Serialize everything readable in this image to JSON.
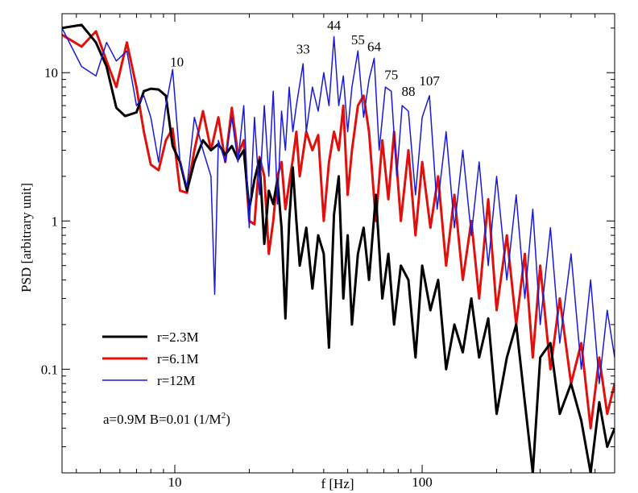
{
  "chart_data": {
    "type": "line",
    "title": "",
    "xlabel": "f [Hz]",
    "ylabel": "PSD [arbitrary unit]",
    "xscale": "log",
    "yscale": "log",
    "xlim": [
      3.5,
      600
    ],
    "ylim": [
      0.02,
      25
    ],
    "grid": false,
    "legend_position": "bottom-left",
    "x_ticks": [
      {
        "value": 10,
        "label": "10"
      },
      {
        "value": 100,
        "label": "100"
      }
    ],
    "y_ticks": [
      {
        "value": 0.1,
        "label": "0.1"
      },
      {
        "value": 1,
        "label": "1"
      },
      {
        "value": 10,
        "label": "10"
      }
    ],
    "annotation_parameters": {
      "text": "a=0.9M   B=0.01 (1/M",
      "superscript": "2",
      "suffix": ")"
    },
    "peak_labels": [
      {
        "label": "10",
        "x": 10.2,
        "y": 11.0
      },
      {
        "label": "33",
        "x": 33,
        "y": 13.5
      },
      {
        "label": "44",
        "x": 44,
        "y": 19.5
      },
      {
        "label": "55",
        "x": 55,
        "y": 15.5
      },
      {
        "label": "64",
        "x": 64,
        "y": 14.0
      },
      {
        "label": "75",
        "x": 75,
        "y": 9.0
      },
      {
        "label": "88",
        "x": 88,
        "y": 7.0
      },
      {
        "label": "107",
        "x": 107,
        "y": 8.2
      }
    ],
    "series": [
      {
        "name": "r=2.3M",
        "color": "#000000",
        "line_width": 3,
        "points": [
          [
            3.5,
            20
          ],
          [
            4.2,
            21
          ],
          [
            4.8,
            16
          ],
          [
            5.3,
            11
          ],
          [
            5.8,
            5.8
          ],
          [
            6.3,
            5.1
          ],
          [
            7.0,
            5.4
          ],
          [
            7.5,
            7.5
          ],
          [
            8.0,
            7.8
          ],
          [
            8.6,
            7.7
          ],
          [
            9.2,
            7.0
          ],
          [
            9.8,
            3.2
          ],
          [
            10.5,
            2.5
          ],
          [
            11.2,
            1.6
          ],
          [
            12.0,
            2.5
          ],
          [
            13.0,
            3.5
          ],
          [
            14.0,
            3.0
          ],
          [
            15.0,
            3.3
          ],
          [
            16.0,
            2.8
          ],
          [
            17.0,
            3.2
          ],
          [
            18.0,
            2.6
          ],
          [
            19.0,
            3.0
          ],
          [
            20.0,
            1.2
          ],
          [
            21.0,
            1.9
          ],
          [
            22.0,
            2.6
          ],
          [
            23.0,
            0.7
          ],
          [
            24.0,
            1.6
          ],
          [
            25.0,
            1.3
          ],
          [
            26.0,
            1.9
          ],
          [
            27.0,
            0.9
          ],
          [
            28.0,
            0.22
          ],
          [
            29.0,
            1.0
          ],
          [
            30.0,
            2.3
          ],
          [
            31.0,
            1.0
          ],
          [
            32.0,
            0.5
          ],
          [
            34.0,
            0.9
          ],
          [
            36.0,
            0.35
          ],
          [
            38.0,
            0.8
          ],
          [
            40.0,
            0.6
          ],
          [
            42.0,
            0.14
          ],
          [
            44.0,
            1.1
          ],
          [
            46.0,
            2.0
          ],
          [
            48.0,
            0.3
          ],
          [
            50.0,
            0.8
          ],
          [
            52.0,
            0.2
          ],
          [
            55.0,
            0.6
          ],
          [
            58.0,
            0.9
          ],
          [
            61.0,
            0.4
          ],
          [
            65.0,
            1.5
          ],
          [
            69.0,
            0.3
          ],
          [
            73.0,
            0.6
          ],
          [
            77.0,
            0.2
          ],
          [
            82.0,
            0.5
          ],
          [
            88.0,
            0.4
          ],
          [
            94.0,
            0.12
          ],
          [
            100.0,
            0.5
          ],
          [
            108.0,
            0.25
          ],
          [
            116.0,
            0.4
          ],
          [
            125.0,
            0.1
          ],
          [
            135.0,
            0.2
          ],
          [
            146.0,
            0.13
          ],
          [
            158.0,
            0.3
          ],
          [
            170.0,
            0.12
          ],
          [
            185.0,
            0.22
          ],
          [
            200.0,
            0.05
          ],
          [
            220.0,
            0.12
          ],
          [
            240.0,
            0.2
          ],
          [
            260.0,
            0.06
          ],
          [
            280.0,
            0.02
          ],
          [
            300.0,
            0.12
          ],
          [
            330.0,
            0.15
          ],
          [
            360.0,
            0.05
          ],
          [
            400.0,
            0.08
          ],
          [
            440.0,
            0.045
          ],
          [
            480.0,
            0.02
          ],
          [
            520.0,
            0.06
          ],
          [
            560.0,
            0.03
          ],
          [
            600.0,
            0.04
          ]
        ]
      },
      {
        "name": "r=6.1M",
        "color": "#e0100c",
        "line_width": 3,
        "points": [
          [
            3.5,
            18
          ],
          [
            4.2,
            15
          ],
          [
            4.8,
            19
          ],
          [
            5.3,
            12
          ],
          [
            5.8,
            8
          ],
          [
            6.4,
            16
          ],
          [
            7.0,
            8
          ],
          [
            7.5,
            4
          ],
          [
            8.0,
            2.4
          ],
          [
            8.6,
            2.2
          ],
          [
            9.2,
            3.5
          ],
          [
            9.8,
            4.2
          ],
          [
            10.5,
            1.6
          ],
          [
            11.2,
            1.55
          ],
          [
            12.0,
            3.0
          ],
          [
            13.0,
            5.5
          ],
          [
            14.0,
            3.0
          ],
          [
            15.0,
            5.0
          ],
          [
            16.0,
            2.5
          ],
          [
            17.0,
            5.8
          ],
          [
            18.0,
            2.8
          ],
          [
            19.0,
            3.5
          ],
          [
            20.0,
            1.0
          ],
          [
            21.0,
            0.95
          ],
          [
            22.0,
            2.7
          ],
          [
            23.0,
            2.0
          ],
          [
            24.0,
            0.6
          ],
          [
            25.0,
            1.0
          ],
          [
            26.0,
            2.0
          ],
          [
            27.0,
            2.5
          ],
          [
            28.0,
            1.2
          ],
          [
            29.0,
            1.8
          ],
          [
            30.0,
            2.6
          ],
          [
            31.0,
            4.0
          ],
          [
            32.0,
            2.0
          ],
          [
            34.0,
            4.0
          ],
          [
            36.0,
            3.0
          ],
          [
            38.0,
            3.8
          ],
          [
            40.0,
            1.0
          ],
          [
            42.0,
            2.5
          ],
          [
            44.0,
            4.0
          ],
          [
            46.0,
            3.0
          ],
          [
            48.0,
            6.0
          ],
          [
            50.0,
            1.5
          ],
          [
            52.0,
            3.0
          ],
          [
            55.0,
            6.0
          ],
          [
            58.0,
            7.0
          ],
          [
            61.0,
            4.0
          ],
          [
            65.0,
            1.0
          ],
          [
            69.0,
            3.5
          ],
          [
            73.0,
            1.4
          ],
          [
            77.0,
            4.0
          ],
          [
            82.0,
            1.0
          ],
          [
            88.0,
            3.0
          ],
          [
            94.0,
            0.8
          ],
          [
            100.0,
            2.5
          ],
          [
            108.0,
            0.9
          ],
          [
            116.0,
            2.0
          ],
          [
            125.0,
            0.5
          ],
          [
            135.0,
            1.5
          ],
          [
            146.0,
            0.4
          ],
          [
            158.0,
            1.0
          ],
          [
            170.0,
            0.3
          ],
          [
            185.0,
            1.4
          ],
          [
            200.0,
            0.25
          ],
          [
            220.0,
            0.8
          ],
          [
            240.0,
            0.2
          ],
          [
            260.0,
            0.6
          ],
          [
            280.0,
            0.12
          ],
          [
            300.0,
            0.5
          ],
          [
            330.0,
            0.1
          ],
          [
            360.0,
            0.3
          ],
          [
            400.0,
            0.08
          ],
          [
            440.0,
            0.15
          ],
          [
            480.0,
            0.04
          ],
          [
            520.0,
            0.12
          ],
          [
            560.0,
            0.05
          ],
          [
            600.0,
            0.08
          ]
        ]
      },
      {
        "name": "r=12M",
        "color": "#1a1ad6",
        "line_width": 1.5,
        "points": [
          [
            3.5,
            20
          ],
          [
            4.2,
            11
          ],
          [
            4.8,
            9.5
          ],
          [
            5.3,
            16
          ],
          [
            5.8,
            12
          ],
          [
            6.4,
            14
          ],
          [
            7.0,
            6
          ],
          [
            7.5,
            7.0
          ],
          [
            8.0,
            5.0
          ],
          [
            8.6,
            2.5
          ],
          [
            9.2,
            6.0
          ],
          [
            9.8,
            10.5
          ],
          [
            10.5,
            2.5
          ],
          [
            11.2,
            1.7
          ],
          [
            12.0,
            5.0
          ],
          [
            13.0,
            3.0
          ],
          [
            14.0,
            2.0
          ],
          [
            14.5,
            0.32
          ],
          [
            15.0,
            3.5
          ],
          [
            16.0,
            2.5
          ],
          [
            17.0,
            5.0
          ],
          [
            18.0,
            2.5
          ],
          [
            19.0,
            6.0
          ],
          [
            20.0,
            0.9
          ],
          [
            21.0,
            5.0
          ],
          [
            22.0,
            1.5
          ],
          [
            23.0,
            6.0
          ],
          [
            24.0,
            2.0
          ],
          [
            25.0,
            7.5
          ],
          [
            26.0,
            1.3
          ],
          [
            27.0,
            5.5
          ],
          [
            28.0,
            3.0
          ],
          [
            29.0,
            8.0
          ],
          [
            30.0,
            4.0
          ],
          [
            31.0,
            6.0
          ],
          [
            33.0,
            11.5
          ],
          [
            34.0,
            4.0
          ],
          [
            36.0,
            8.0
          ],
          [
            38.0,
            5.5
          ],
          [
            40.0,
            10.0
          ],
          [
            42.0,
            6.0
          ],
          [
            44.0,
            17.5
          ],
          [
            46.0,
            6.0
          ],
          [
            48.0,
            9.5
          ],
          [
            50.0,
            4.0
          ],
          [
            52.0,
            8.0
          ],
          [
            55.0,
            14.0
          ],
          [
            58.0,
            5.0
          ],
          [
            61.0,
            9.0
          ],
          [
            64.0,
            12.5
          ],
          [
            67.0,
            3.0
          ],
          [
            71.0,
            8.0
          ],
          [
            75.0,
            7.5
          ],
          [
            79.0,
            2.0
          ],
          [
            83.0,
            6.0
          ],
          [
            88.0,
            5.5
          ],
          [
            94.0,
            1.5
          ],
          [
            100.0,
            5.0
          ],
          [
            107.0,
            7.0
          ],
          [
            115.0,
            1.2
          ],
          [
            125.0,
            4.0
          ],
          [
            135.0,
            0.9
          ],
          [
            146.0,
            3.0
          ],
          [
            158.0,
            0.8
          ],
          [
            170.0,
            2.5
          ],
          [
            185.0,
            0.5
          ],
          [
            200.0,
            2.0
          ],
          [
            220.0,
            0.4
          ],
          [
            240.0,
            1.5
          ],
          [
            260.0,
            0.3
          ],
          [
            280.0,
            1.2
          ],
          [
            300.0,
            0.2
          ],
          [
            330.0,
            0.9
          ],
          [
            360.0,
            0.15
          ],
          [
            400.0,
            0.6
          ],
          [
            440.0,
            0.1
          ],
          [
            480.0,
            0.4
          ],
          [
            520.0,
            0.08
          ],
          [
            560.0,
            0.25
          ],
          [
            600.0,
            0.12
          ]
        ]
      }
    ]
  }
}
